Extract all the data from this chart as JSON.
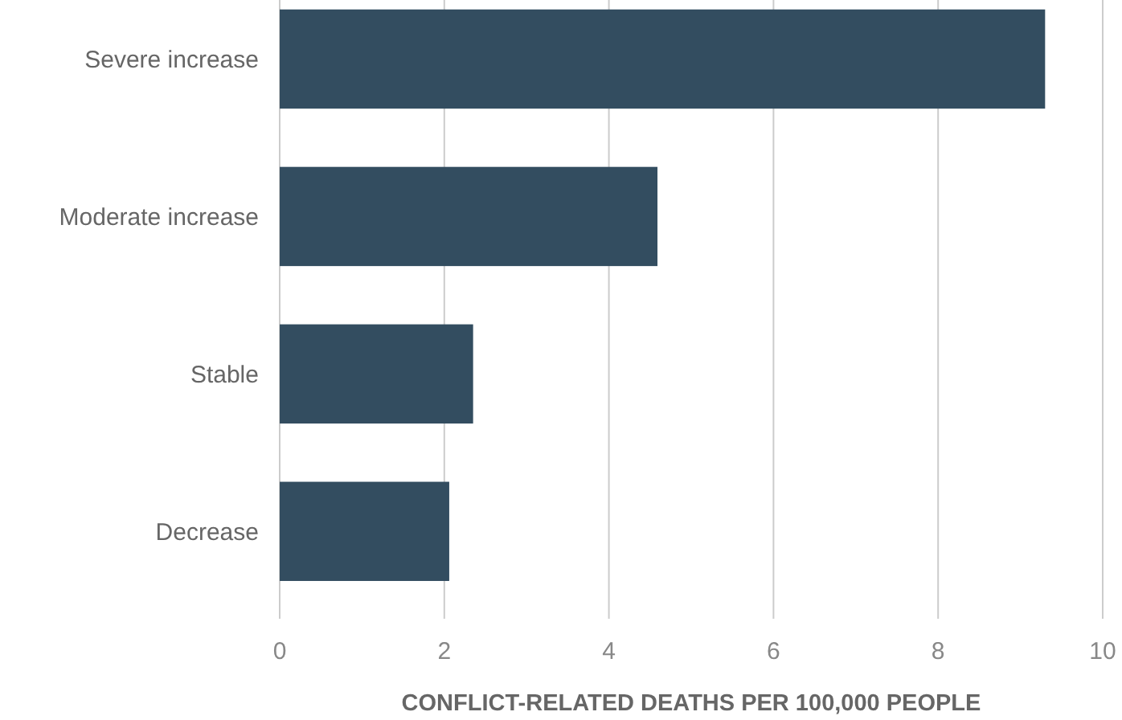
{
  "chart_data": {
    "type": "bar",
    "orientation": "horizontal",
    "xlabel": "CONFLICT-RELATED DEATHS PER 100,000 PEOPLE",
    "categories": [
      "Severe increase",
      "Moderate increase",
      "Stable",
      "Decrease"
    ],
    "values": [
      9.3,
      4.59,
      2.35,
      2.06
    ],
    "color": "#334d60",
    "xlim": [
      0,
      10
    ],
    "xticks": [
      0,
      2,
      4,
      6,
      8,
      10
    ],
    "grid": "x"
  }
}
